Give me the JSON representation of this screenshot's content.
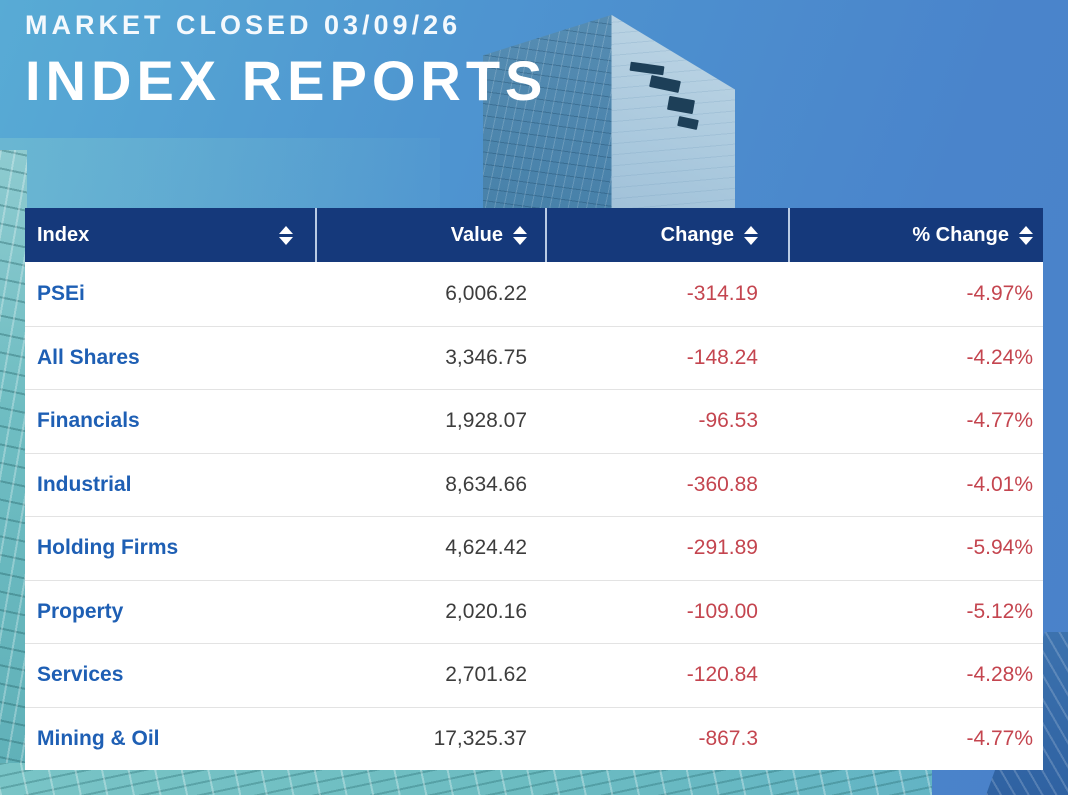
{
  "page": {
    "market_status": "MARKET CLOSED 03/09/26",
    "title": "INDEX REPORTS"
  },
  "table": {
    "columns": [
      {
        "label": "Index",
        "icon": "sort-icon"
      },
      {
        "label": "Value",
        "icon": "sort-icon"
      },
      {
        "label": "Change",
        "icon": "sort-icon"
      },
      {
        "label": "% Change",
        "icon": "sort-icon"
      }
    ],
    "rows": [
      {
        "index": "PSEi",
        "value": "6,006.22",
        "change": "-314.19",
        "pct_change": "-4.97%"
      },
      {
        "index": "All Shares",
        "value": "3,346.75",
        "change": "-148.24",
        "pct_change": "-4.24%"
      },
      {
        "index": "Financials",
        "value": "1,928.07",
        "change": "-96.53",
        "pct_change": "-4.77%"
      },
      {
        "index": "Industrial",
        "value": "8,634.66",
        "change": "-360.88",
        "pct_change": "-4.01%"
      },
      {
        "index": "Holding Firms",
        "value": "4,624.42",
        "change": "-291.89",
        "pct_change": "-5.94%"
      },
      {
        "index": "Property",
        "value": "2,020.16",
        "change": "-109.00",
        "pct_change": "-5.12%"
      },
      {
        "index": "Services",
        "value": "2,701.62",
        "change": "-120.84",
        "pct_change": "-4.28%"
      },
      {
        "index": "Mining & Oil",
        "value": "17,325.37",
        "change": "-867.3",
        "pct_change": "-4.77%"
      }
    ]
  },
  "colors": {
    "header_bar": "#15397b",
    "header_text": "#ffffff",
    "index_link_blue": "#1e5fb4",
    "value_text": "#3d3d3d",
    "negative_red": "#c4454f",
    "row_divider": "#e3e3e3",
    "sky_blue": "#4a86cd",
    "teal_glass": "#6fbdc2"
  },
  "chart_data": {
    "type": "table",
    "title": "INDEX REPORTS",
    "subtitle": "MARKET CLOSED 03/09/26",
    "columns": [
      "Index",
      "Value",
      "Change",
      "% Change"
    ],
    "rows": [
      [
        "PSEi",
        6006.22,
        -314.19,
        -4.97
      ],
      [
        "All Shares",
        3346.75,
        -148.24,
        -4.24
      ],
      [
        "Financials",
        1928.07,
        -96.53,
        -4.77
      ],
      [
        "Industrial",
        8634.66,
        -360.88,
        -4.01
      ],
      [
        "Holding Firms",
        4624.42,
        -291.89,
        -5.94
      ],
      [
        "Property",
        2020.16,
        -109.0,
        -5.12
      ],
      [
        "Services",
        2701.62,
        -120.84,
        -4.28
      ],
      [
        "Mining & Oil",
        17325.37,
        -867.3,
        -4.77
      ]
    ]
  }
}
